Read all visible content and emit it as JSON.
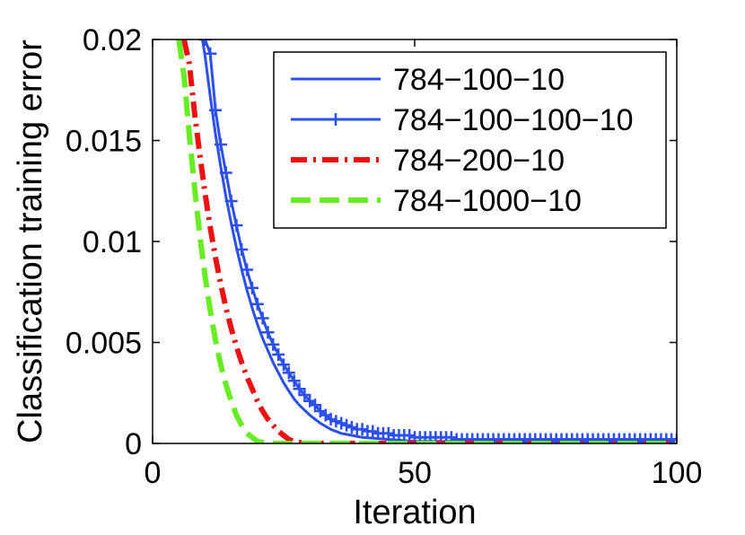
{
  "chart_data": {
    "type": "line",
    "title": "",
    "xlabel": "Iteration",
    "ylabel": "Classification training error",
    "xlim": [
      0,
      100
    ],
    "ylim": [
      0,
      0.02
    ],
    "xticks": [
      0,
      50,
      100
    ],
    "xtick_labels": [
      "0",
      "50",
      "100"
    ],
    "yticks": [
      0,
      0.005,
      0.01,
      0.015,
      0.02
    ],
    "ytick_labels": [
      "0",
      "0.005",
      "0.01",
      "0.015",
      "0.02"
    ],
    "grid": false,
    "legend_position": "top-right",
    "series": [
      {
        "name": "784−100−10",
        "color": "#2b4ff0",
        "style": "solid",
        "marker": "none",
        "x": [
          9.5,
          10,
          11,
          12,
          13,
          14,
          15,
          16,
          17,
          18,
          19,
          20,
          21,
          22,
          23,
          24,
          25,
          26,
          27,
          28,
          30,
          32,
          34,
          36,
          38,
          40,
          45,
          50,
          55,
          60,
          70,
          80,
          90,
          100
        ],
        "y": [
          0.02,
          0.0192,
          0.0172,
          0.0153,
          0.0137,
          0.0122,
          0.0109,
          0.0097,
          0.0086,
          0.0076,
          0.0067,
          0.0059,
          0.0052,
          0.0046,
          0.004,
          0.0035,
          0.003,
          0.0026,
          0.0022,
          0.0019,
          0.0014,
          0.001,
          0.0007,
          0.0005,
          0.0004,
          0.0003,
          0.0002,
          0.0001,
          0.0001,
          0.0001,
          0.0001,
          0.0001,
          0.0001,
          0.0001
        ]
      },
      {
        "name": "784−100−100−10",
        "color": "#2b4ff0",
        "style": "solid",
        "marker": "plus",
        "x": [
          10,
          11,
          12,
          13,
          14,
          15,
          16,
          17,
          18,
          19,
          20,
          21,
          22,
          23,
          24,
          25,
          26,
          27,
          28,
          29,
          30,
          31,
          32,
          33,
          34,
          35,
          36,
          37,
          38,
          39,
          40,
          41,
          42,
          43,
          44,
          45,
          46,
          47,
          48,
          49,
          50,
          51,
          52,
          53,
          54,
          55,
          56,
          57,
          58,
          59,
          60,
          61,
          62,
          63,
          64,
          65,
          66,
          67,
          68,
          69,
          70,
          71,
          72,
          73,
          74,
          75,
          76,
          77,
          78,
          79,
          80,
          81,
          82,
          83,
          84,
          85,
          86,
          87,
          88,
          89,
          90,
          91,
          92,
          93,
          94,
          95,
          96,
          97,
          98,
          99,
          100
        ],
        "y": [
          0.02,
          0.0193,
          0.0165,
          0.0148,
          0.0134,
          0.012,
          0.0108,
          0.0096,
          0.0086,
          0.0077,
          0.0069,
          0.0062,
          0.0055,
          0.0049,
          0.0044,
          0.0039,
          0.0035,
          0.0031,
          0.0027,
          0.0024,
          0.0021,
          0.0019,
          0.0016,
          0.0014,
          0.0012,
          0.0011,
          0.001,
          0.0009,
          0.0008,
          0.0007,
          0.0007,
          0.0006,
          0.0006,
          0.0005,
          0.0005,
          0.0005,
          0.0004,
          0.0004,
          0.0004,
          0.0004,
          0.0003,
          0.0003,
          0.0003,
          0.0003,
          0.0003,
          0.0003,
          0.0003,
          0.0003,
          0.0002,
          0.0002,
          0.0002,
          0.0002,
          0.0002,
          0.0002,
          0.0002,
          0.0002,
          0.0002,
          0.0002,
          0.0002,
          0.0002,
          0.0002,
          0.0002,
          0.0002,
          0.0002,
          0.0002,
          0.0002,
          0.0002,
          0.0002,
          0.0002,
          0.0002,
          0.0002,
          0.0002,
          0.0002,
          0.0002,
          0.0002,
          0.0002,
          0.0002,
          0.0002,
          0.0002,
          0.0002,
          0.0002,
          0.0002,
          0.0002,
          0.0002,
          0.0002,
          0.0002,
          0.0002,
          0.0002,
          0.0002,
          0.0002,
          0.0002
        ]
      },
      {
        "name": "784−200−10",
        "color": "#ee1111",
        "style": "dashdot",
        "marker": "none",
        "x": [
          6,
          7,
          8,
          9,
          10,
          11,
          12,
          13,
          14,
          15,
          16,
          17,
          18,
          19,
          20,
          21,
          22,
          23,
          24,
          25,
          26,
          27,
          28,
          30,
          35,
          40,
          50,
          60,
          70,
          80,
          90,
          100
        ],
        "y": [
          0.02,
          0.0188,
          0.0164,
          0.0143,
          0.0124,
          0.0107,
          0.0092,
          0.0079,
          0.0067,
          0.0057,
          0.0048,
          0.004,
          0.0033,
          0.0027,
          0.0021,
          0.0016,
          0.0012,
          0.0009,
          0.0006,
          0.0004,
          0.0002,
          0.0001,
          5e-05,
          0.0,
          0.0,
          0.0,
          0.0,
          0.0,
          0.0,
          0.0,
          0.0,
          0.0
        ]
      },
      {
        "name": "784−1000−10",
        "color": "#66ee22",
        "style": "dashed",
        "marker": "none",
        "x": [
          5,
          6,
          7,
          8,
          9,
          10,
          11,
          12,
          13,
          14,
          15,
          16,
          17,
          18,
          19,
          20,
          21,
          22,
          23,
          24,
          25,
          30,
          40,
          50,
          60,
          70,
          80,
          90,
          100
        ],
        "y": [
          0.02,
          0.0182,
          0.0153,
          0.0127,
          0.0103,
          0.0083,
          0.0066,
          0.0051,
          0.0039,
          0.0029,
          0.0021,
          0.0014,
          0.0009,
          0.0005,
          0.0003,
          0.0001,
          5e-05,
          0.0,
          0.0,
          0.0,
          0.0,
          0.0,
          0.0,
          0.0,
          0.0,
          0.0,
          0.0,
          0.0,
          0.0
        ]
      }
    ]
  }
}
